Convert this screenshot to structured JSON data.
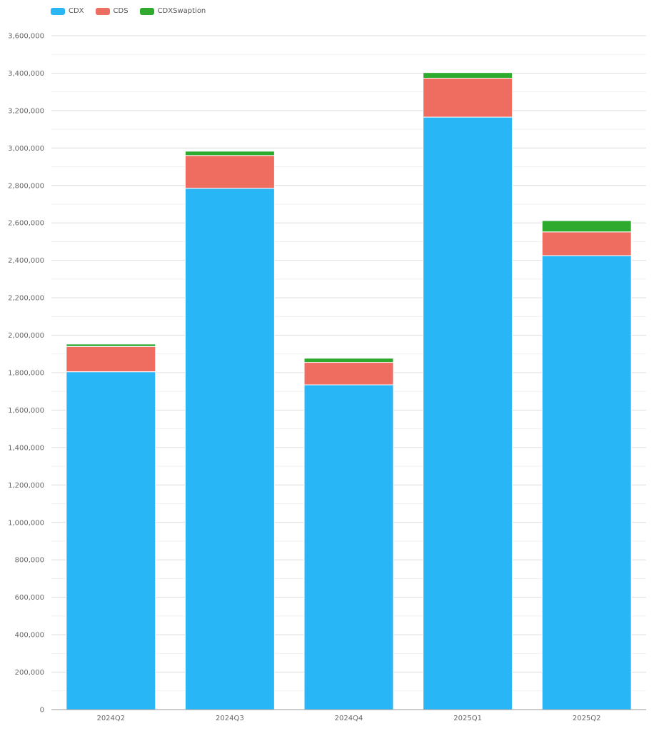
{
  "chart_data": {
    "type": "bar",
    "stacked": true,
    "categories": [
      "2024Q2",
      "2024Q3",
      "2024Q4",
      "2025Q1",
      "2025Q2"
    ],
    "series": [
      {
        "name": "CDX",
        "color": "#29b6f6",
        "values": [
          1805000,
          2785000,
          1735000,
          3165000,
          2425000
        ]
      },
      {
        "name": "CDS",
        "color": "#ef6c61",
        "values": [
          135000,
          175000,
          120000,
          208000,
          127000
        ]
      },
      {
        "name": "CDXSwaption",
        "color": "#2eaa2e",
        "values": [
          13000,
          23000,
          22000,
          30000,
          60000
        ]
      }
    ],
    "ylim": [
      0,
      3600000
    ],
    "yticks": [
      0,
      200000,
      400000,
      600000,
      800000,
      1000000,
      1200000,
      1400000,
      1600000,
      1800000,
      2000000,
      2200000,
      2400000,
      2600000,
      2800000,
      3000000,
      3200000,
      3400000,
      3600000
    ],
    "ytick_labels": [
      "0",
      "200,000",
      "400,000",
      "600,000",
      "800,000",
      "1,000,000",
      "1,200,000",
      "1,400,000",
      "1,600,000",
      "1,800,000",
      "2,000,000",
      "2,200,000",
      "2,400,000",
      "2,600,000",
      "2,800,000",
      "3,000,000",
      "3,200,000",
      "3,400,000",
      "3,600,000"
    ],
    "grid": true,
    "legend_position": "top-left",
    "title": "",
    "xlabel": "",
    "ylabel": ""
  }
}
